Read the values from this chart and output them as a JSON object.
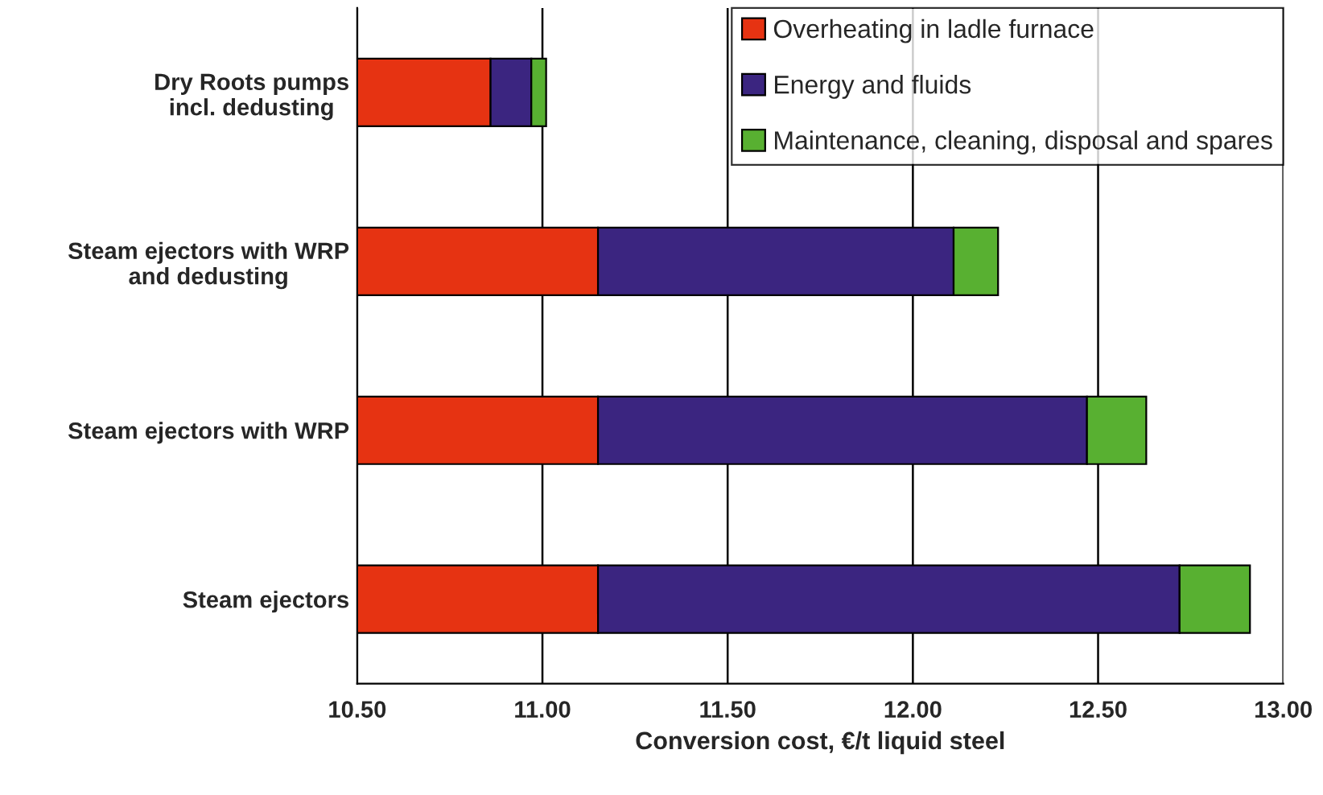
{
  "chart_data": {
    "type": "bar",
    "orientation": "horizontal",
    "categories": [
      "Dry Roots pumps\nincl. dedusting",
      "Steam ejectors with WRP\nand dedusting",
      "Steam ejectors with WRP",
      "Steam ejectors"
    ],
    "series": [
      {
        "name": "Overheating in ladle furnace",
        "color": "#e63312",
        "base": [
          10.5,
          10.5,
          10.5,
          10.5
        ],
        "values": [
          0.36,
          0.65,
          0.65,
          0.65
        ]
      },
      {
        "name": "Energy and fluids",
        "color": "#3b2580",
        "base": [
          10.86,
          11.15,
          11.15,
          11.15
        ],
        "values": [
          0.11,
          0.96,
          1.32,
          1.57
        ]
      },
      {
        "name": "Maintenance, cleaning, disposal and spares",
        "color": "#58b031",
        "base": [
          10.97,
          12.11,
          12.47,
          12.72
        ],
        "values": [
          0.04,
          0.12,
          0.16,
          0.19
        ]
      }
    ],
    "xlabel": "Conversion cost, €/t liquid steel",
    "xlim": [
      10.5,
      13.0
    ],
    "xticks": [
      {
        "value": 10.5,
        "label": "10.50"
      },
      {
        "value": 11.0,
        "label": "11.00"
      },
      {
        "value": 11.5,
        "label": "11.50"
      },
      {
        "value": 12.0,
        "label": "12.00"
      },
      {
        "value": 12.5,
        "label": "12.50"
      },
      {
        "value": 13.0,
        "label": "13.00"
      }
    ],
    "grid": "x",
    "legend": "top right"
  }
}
